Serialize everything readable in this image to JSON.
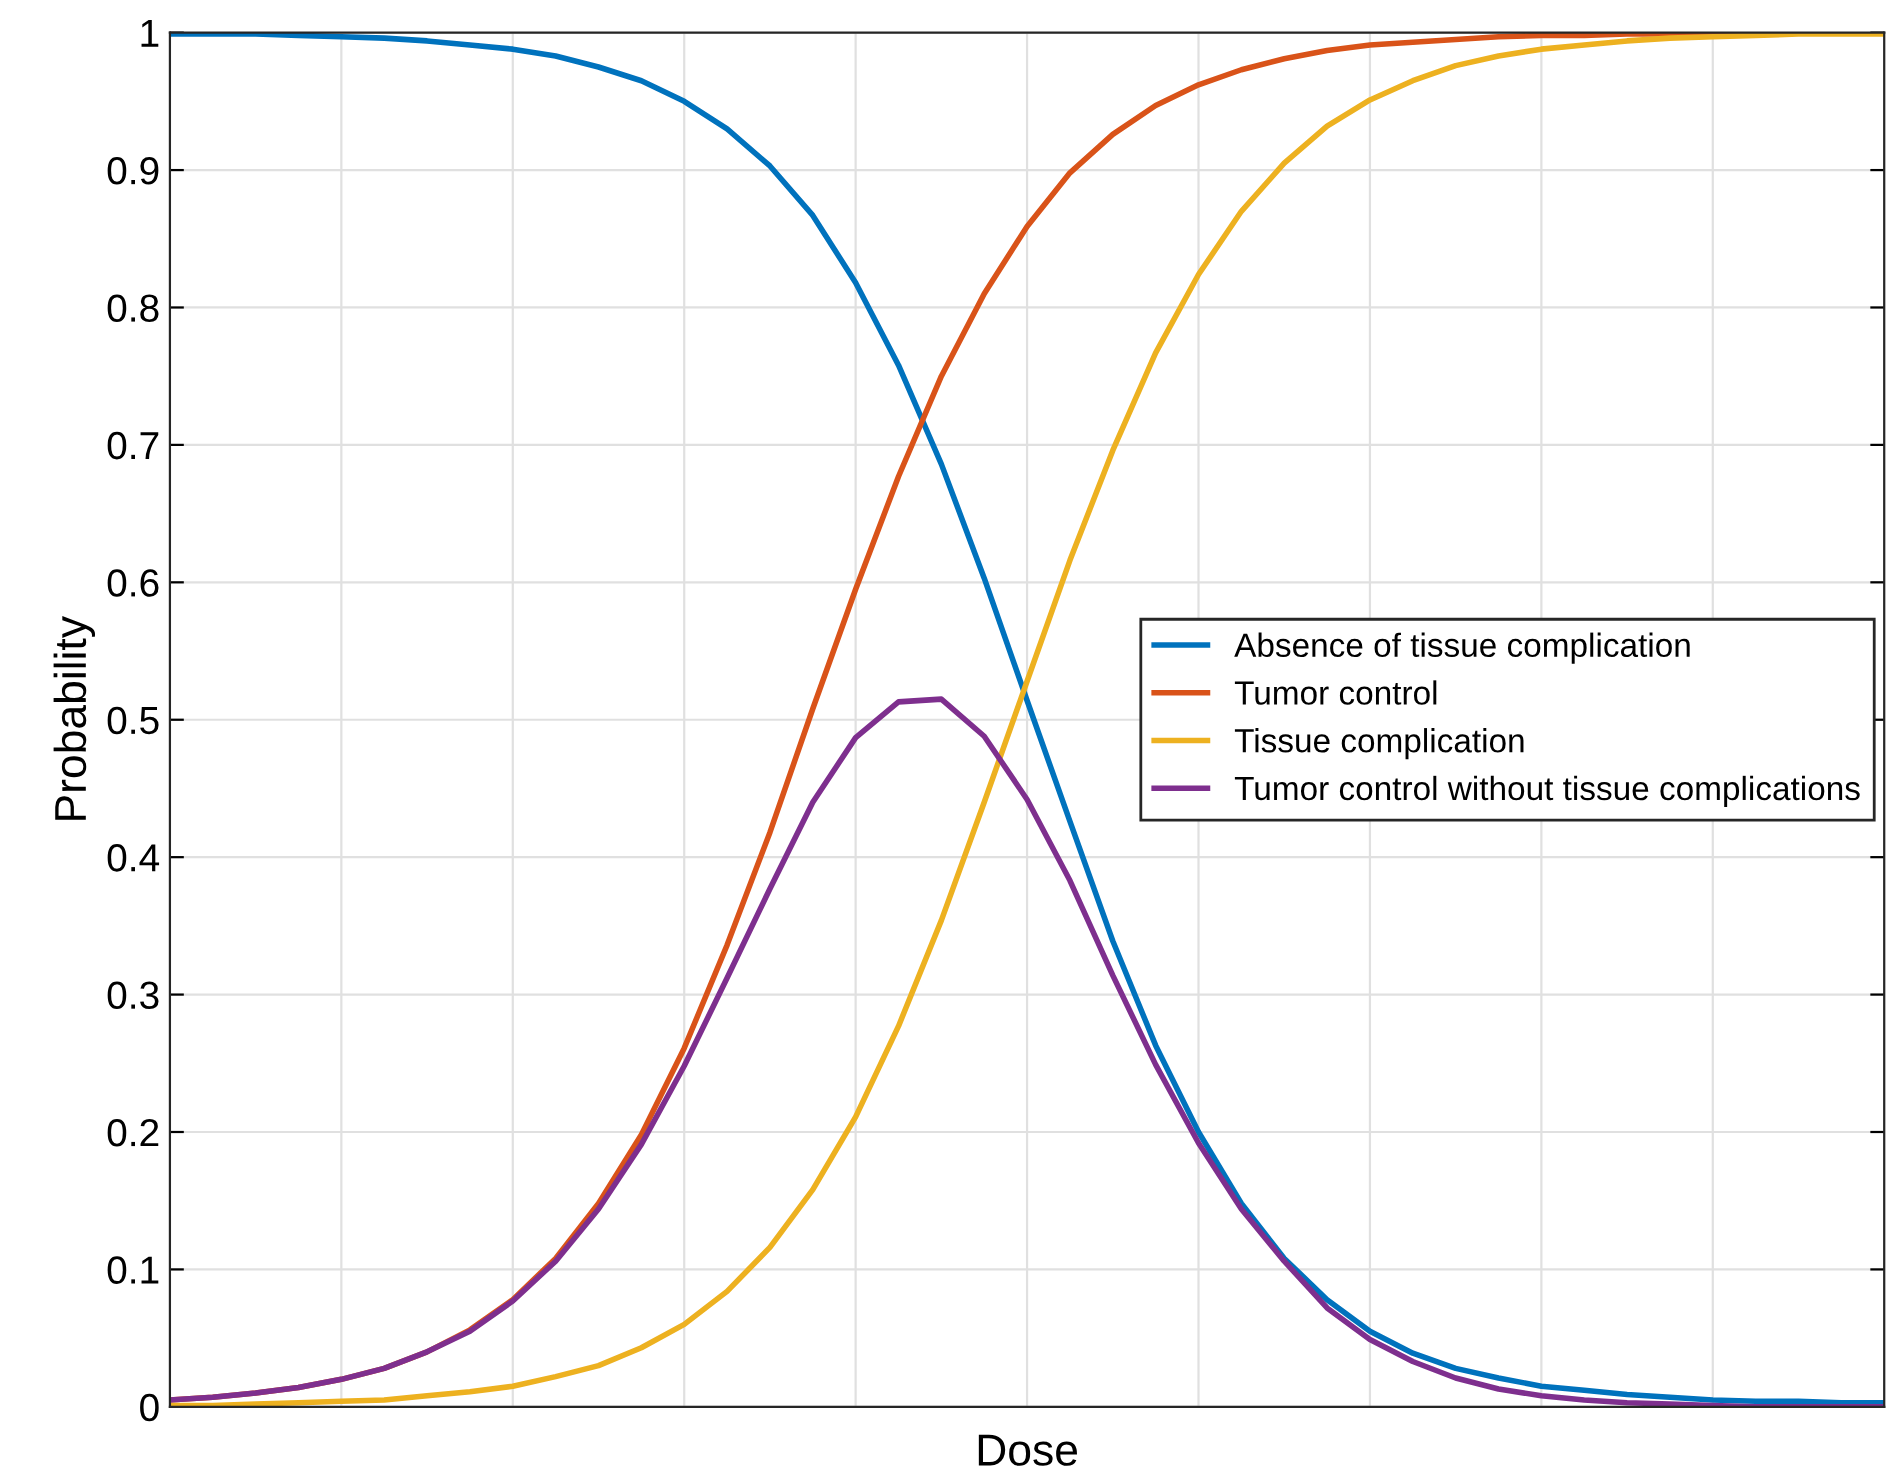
{
  "chart_data": {
    "type": "line",
    "xlabel": "Dose",
    "ylabel": "Probability",
    "categories": [
      null,
      null,
      null,
      null,
      null,
      null,
      null,
      null,
      null,
      null,
      null,
      null,
      null,
      null,
      null,
      null,
      null,
      null,
      null,
      null,
      null,
      null,
      null,
      null,
      null,
      null,
      null,
      null,
      null,
      null,
      null,
      null,
      null,
      null,
      null,
      null,
      null,
      null,
      null,
      null,
      null
    ],
    "series": [
      {
        "name": "Absence of tissue complication",
        "color": "#0072bd",
        "values": [
          0.999,
          0.999,
          0.999,
          0.998,
          0.997,
          0.996,
          0.994,
          0.991,
          0.988,
          0.983,
          0.975,
          0.965,
          0.95,
          0.93,
          0.903,
          0.867,
          0.818,
          0.758,
          0.686,
          0.603,
          0.514,
          0.426,
          0.339,
          0.263,
          0.2,
          0.148,
          0.108,
          0.078,
          0.055,
          0.039,
          0.028,
          0.021,
          0.015,
          0.012,
          0.009,
          0.007,
          0.005,
          0.004,
          0.004,
          0.003,
          0.003
        ]
      },
      {
        "name": "Tumor control",
        "color": "#d95319",
        "values": [
          0.005,
          0.007,
          0.01,
          0.014,
          0.02,
          0.028,
          0.04,
          0.056,
          0.078,
          0.108,
          0.148,
          0.198,
          0.261,
          0.336,
          0.418,
          0.508,
          0.595,
          0.677,
          0.75,
          0.81,
          0.859,
          0.898,
          0.926,
          0.947,
          0.962,
          0.973,
          0.981,
          0.987,
          0.991,
          0.993,
          0.995,
          0.997,
          0.998,
          0.998,
          0.999,
          0.999,
          1,
          1,
          null,
          null,
          null
        ]
      },
      {
        "name": "Tissue complication",
        "color": "#edb120",
        "values": [
          0.001,
          0.001,
          0.002,
          0.003,
          0.004,
          0.005,
          0.008,
          0.011,
          0.015,
          0.022,
          0.03,
          0.043,
          0.06,
          0.084,
          0.116,
          0.158,
          0.211,
          0.277,
          0.354,
          0.44,
          0.528,
          0.616,
          0.696,
          0.767,
          0.824,
          0.87,
          0.905,
          0.932,
          0.951,
          0.965,
          0.976,
          0.983,
          0.988,
          0.991,
          0.994,
          0.996,
          0.997,
          0.998,
          0.999,
          0.999,
          0.999
        ]
      },
      {
        "name": "Tumor control without tissue complications",
        "color": "#7e2f8e",
        "values": [
          0.005,
          0.007,
          0.01,
          0.014,
          0.02,
          0.028,
          0.04,
          0.055,
          0.077,
          0.106,
          0.144,
          0.191,
          0.248,
          0.312,
          0.377,
          0.44,
          0.487,
          0.513,
          0.515,
          0.488,
          0.442,
          0.383,
          0.314,
          0.249,
          0.192,
          0.144,
          0.106,
          0.072,
          0.049,
          0.033,
          0.021,
          0.013,
          0.008,
          0.005,
          0.003,
          0.002,
          0.001,
          0,
          0,
          0,
          0
        ]
      }
    ],
    "ylim": [
      0,
      1
    ],
    "yticks": [
      0,
      0.1,
      0.2,
      0.3,
      0.4,
      0.5,
      0.6,
      0.7,
      0.8,
      0.9,
      1
    ],
    "grid": true,
    "legend": "right",
    "line_style": "solid",
    "marker": "none"
  }
}
